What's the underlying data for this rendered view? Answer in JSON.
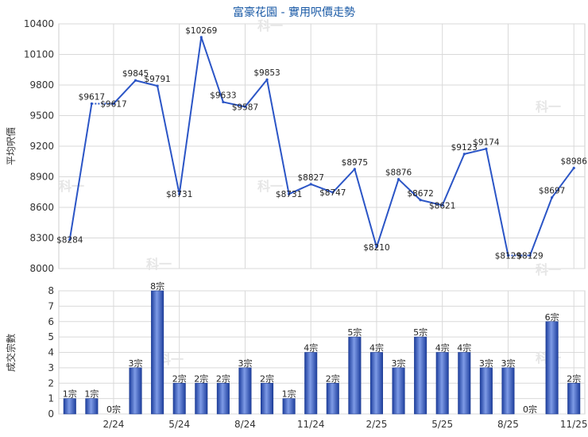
{
  "chart_data": [
    {
      "type": "line",
      "title": "富豪花園 - 實用呎價走勢",
      "ylabel": "平均呎價",
      "ylim": [
        8000,
        10400
      ],
      "yticks": [
        8000,
        8300,
        8600,
        8900,
        9200,
        9500,
        9800,
        10100,
        10400
      ],
      "color": "#2b55c6",
      "points": [
        {
          "v": 8284,
          "label": "$8284"
        },
        {
          "v": 9617,
          "label": "$9617"
        },
        {
          "v": 9617,
          "label": "$9617"
        },
        {
          "v": 9845,
          "label": "$9845"
        },
        {
          "v": 9791,
          "label": "$9791"
        },
        {
          "v": 8731,
          "label": "$8731"
        },
        {
          "v": 10269,
          "label": "$10269"
        },
        {
          "v": 9633,
          "label": "$9633"
        },
        {
          "v": 9587,
          "label": "$9587"
        },
        {
          "v": 9853,
          "label": "$9853"
        },
        {
          "v": 8731,
          "label": "$8731"
        },
        {
          "v": 8827,
          "label": "$8827"
        },
        {
          "v": 8747,
          "label": "$8747"
        },
        {
          "v": 8975,
          "label": "$8975"
        },
        {
          "v": 8210,
          "label": "$8210"
        },
        {
          "v": 8876,
          "label": "$8876"
        },
        {
          "v": 8672,
          "label": "$8672"
        },
        {
          "v": 8621,
          "label": "$8621"
        },
        {
          "v": 9123,
          "label": "$9123"
        },
        {
          "v": 9174,
          "label": "$9174"
        },
        {
          "v": 8129,
          "label": "$8129"
        },
        {
          "v": 8129,
          "label": "$8129"
        },
        {
          "v": 8697,
          "label": "$8697"
        },
        {
          "v": 8986,
          "label": "$8986"
        }
      ],
      "dotted_segments": [
        [
          1,
          2
        ],
        [
          20,
          21
        ]
      ]
    },
    {
      "type": "bar",
      "ylabel": "成交宗數",
      "ylim": [
        0,
        8
      ],
      "yticks": [
        0,
        1,
        2,
        3,
        4,
        5,
        6,
        7,
        8
      ],
      "categories": [
        "",
        "",
        "2/24",
        "",
        "",
        "5/24",
        "",
        "",
        "8/24",
        "",
        "",
        "11/24",
        "",
        "",
        "2/25",
        "",
        "",
        "5/25",
        "",
        "",
        "8/25",
        "",
        "",
        "11/25"
      ],
      "values": [
        1,
        1,
        0,
        3,
        8,
        2,
        2,
        2,
        3,
        2,
        1,
        4,
        2,
        5,
        4,
        3,
        5,
        4,
        4,
        3,
        3,
        0,
        6,
        2
      ],
      "labels": [
        "1宗",
        "1宗",
        "0宗",
        "3宗",
        "8宗",
        "2宗",
        "2宗",
        "2宗",
        "3宗",
        "2宗",
        "1宗",
        "4宗",
        "2宗",
        "5宗",
        "4宗",
        "3宗",
        "5宗",
        "4宗",
        "4宗",
        "3宗",
        "3宗",
        "0宗",
        "6宗",
        "2宗"
      ],
      "color": "#3a64c9"
    }
  ],
  "watermark": "科一"
}
